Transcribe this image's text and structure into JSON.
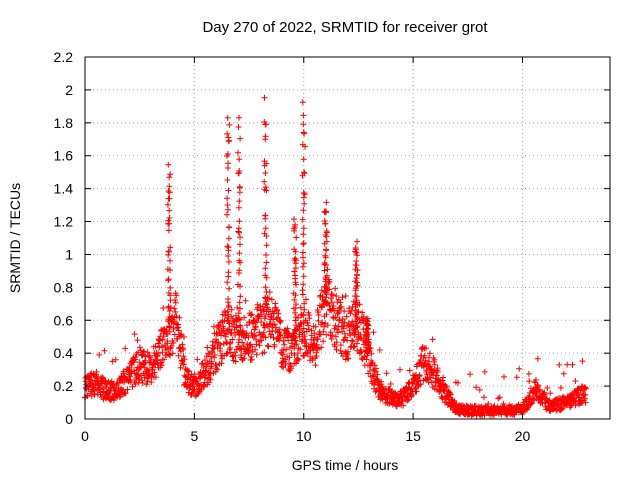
{
  "chart_data": {
    "type": "scatter",
    "title": "Day 270 of 2022, SRMTID for receiver grot",
    "xlabel": "GPS time / hours",
    "ylabel": "SRMTID / TECUs",
    "xlim": [
      0,
      24
    ],
    "ylim": [
      0,
      2.2
    ],
    "xticks": [
      0,
      5,
      10,
      15,
      20
    ],
    "xtick_labels": [
      "0",
      "5",
      "10",
      "15",
      "20"
    ],
    "yticks": [
      0,
      0.2,
      0.4,
      0.6,
      0.8,
      1,
      1.2,
      1.4,
      1.6,
      1.8,
      2,
      2.2
    ],
    "ytick_labels": [
      "0",
      "0.2",
      "0.4",
      "0.6",
      "0.8",
      "1",
      "1.2",
      "1.4",
      "1.6",
      "1.8",
      "2",
      "2.2"
    ],
    "grid": true,
    "marker": "+",
    "marker_color": "#ff0000",
    "series": [
      {
        "name": "SRMTID",
        "profile": {
          "x": [
            0,
            0.5,
            1,
            1.5,
            2,
            2.5,
            3,
            3.5,
            3.8,
            4.2,
            4.6,
            5,
            5.5,
            6,
            6.5,
            7,
            7.5,
            8,
            8.5,
            9,
            9.5,
            10,
            10.5,
            11,
            11.5,
            12,
            12.5,
            13,
            13.5,
            14,
            14.5,
            15,
            15.5,
            16,
            16.5,
            17,
            17.5,
            18,
            19,
            20,
            20.6,
            21.2,
            22,
            22.8
          ],
          "y": [
            0.2,
            0.22,
            0.17,
            0.18,
            0.25,
            0.33,
            0.3,
            0.42,
            0.52,
            0.6,
            0.24,
            0.2,
            0.28,
            0.42,
            0.55,
            0.48,
            0.5,
            0.55,
            0.6,
            0.45,
            0.4,
            0.55,
            0.45,
            0.7,
            0.6,
            0.5,
            0.6,
            0.35,
            0.17,
            0.13,
            0.12,
            0.2,
            0.35,
            0.27,
            0.15,
            0.06,
            0.05,
            0.05,
            0.05,
            0.06,
            0.18,
            0.08,
            0.1,
            0.15
          ]
        },
        "spikes": [
          {
            "x": 3.85,
            "peak": 1.62
          },
          {
            "x": 6.55,
            "peak": 1.91
          },
          {
            "x": 7.05,
            "peak": 1.85
          },
          {
            "x": 8.25,
            "peak": 2.0
          },
          {
            "x": 9.6,
            "peak": 1.25
          },
          {
            "x": 10.0,
            "peak": 1.97
          },
          {
            "x": 11.0,
            "peak": 1.36
          },
          {
            "x": 12.4,
            "peak": 1.08
          },
          {
            "x": 12.9,
            "peak": 0.63
          }
        ],
        "x_end": 22.9
      }
    ]
  }
}
